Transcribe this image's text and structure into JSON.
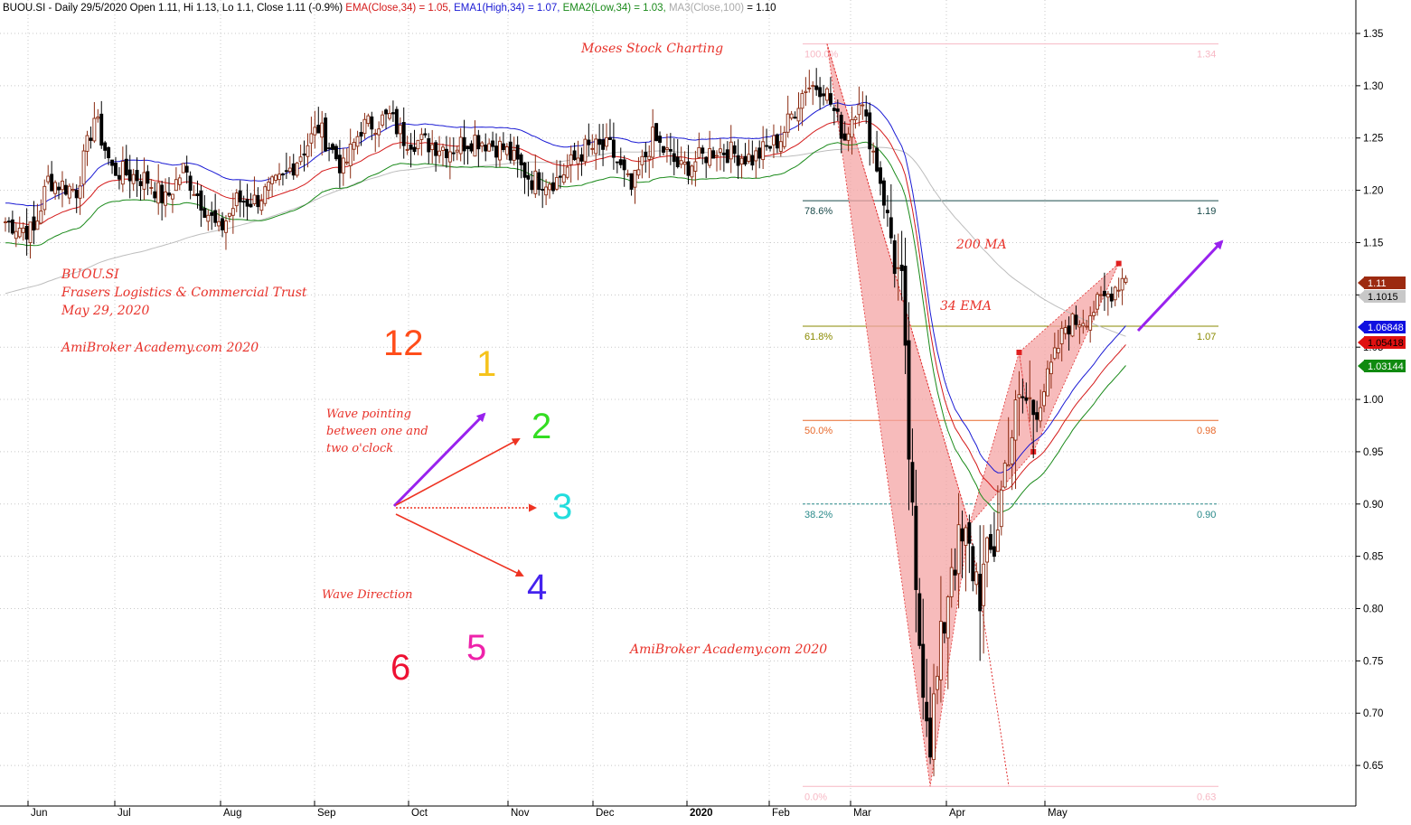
{
  "header": {
    "symbol": "BUOU.SI",
    "info": " - Daily 29/5/2020 Open 1.11, Hi 1.13, Lo 1.1, Close 1.11 (-0.9%) ",
    "ema": "EMA(Close,34) = 1.05,",
    "ema1": "EMA1(High,34) = 1.07,",
    "ema2": "EMA2(Low,34) = 1.03,",
    "ma3": "MA3(Close,100)",
    "ma3_value": " = 1.10"
  },
  "annotations": {
    "watermark_top": "Moses Stock Charting",
    "symbol_note": "BUOU.SI",
    "company": "Frasers Logistics & Commercial Trust",
    "date": "May 29, 2020",
    "credit_left": "AmiBroker Academy.com  2020",
    "credit_bottom": "AmiBroker Academy.com  2020",
    "ma200": "200 MA",
    "ema34": "34 EMA",
    "wave_pointing_1": "Wave pointing",
    "wave_pointing_2": "between one and",
    "wave_pointing_3": "two o'clock",
    "wave_direction": "Wave Direction"
  },
  "clock": {
    "n12": "12",
    "n1": "1",
    "n2": "2",
    "n3": "3",
    "n4": "4",
    "n5": "5",
    "n6": "6",
    "colors": {
      "n12": "#ff4d1a",
      "n1": "#f5c31c",
      "n2": "#33dd22",
      "n3": "#22dddd",
      "n4": "#4422ee",
      "n5": "#ee22aa",
      "n6": "#ee1133"
    }
  },
  "fib_levels": [
    {
      "pct": "100.0%",
      "value": "1.34",
      "color": "#f7b8c4"
    },
    {
      "pct": "78.6%",
      "value": "1.19",
      "color": "#1a4a4a"
    },
    {
      "pct": "61.8%",
      "value": "1.07",
      "color": "#8a8a00"
    },
    {
      "pct": "50.0%",
      "value": "0.98",
      "color": "#e8682a"
    },
    {
      "pct": "38.2%",
      "value": "0.90",
      "color": "#2a8a8a"
    },
    {
      "pct": "0.0%",
      "value": "0.63",
      "color": "#f7b8c4"
    }
  ],
  "price_badges": [
    {
      "label": "1.11",
      "bg": "#9c2a10",
      "fg": "#ffffff"
    },
    {
      "label": "1.1015",
      "bg": "#c8c8c8",
      "fg": "#000000"
    },
    {
      "label": "1.06848",
      "bg": "#1010e0",
      "fg": "#ffffff"
    },
    {
      "label": "1.05418",
      "bg": "#e01010",
      "fg": "#000000"
    },
    {
      "label": "1.03144",
      "bg": "#108a10",
      "fg": "#ffffff"
    }
  ],
  "colors": {
    "ema_close": "#d41a1a",
    "ema_high": "#1a1ad4",
    "ema_low": "#1a8a1a",
    "ma100": "#bdbdbd",
    "pattern_fill": "#f4a4a4",
    "annotation": "#e8322a",
    "arrow_purple": "#9922ee",
    "arrow_red": "#ee3322",
    "up_candle": "#8a2a10",
    "down_candle": "#000000"
  },
  "chart_data": {
    "type": "candlestick",
    "y_axis": {
      "min": 0.6,
      "max": 1.37,
      "ticks": [
        1.35,
        1.3,
        1.25,
        1.2,
        1.15,
        1.1,
        1.05,
        1.0,
        0.95,
        0.9,
        0.85,
        0.8,
        0.75,
        0.7,
        0.65
      ]
    },
    "x_labels": [
      "Jun",
      "Jul",
      "Aug",
      "Sep",
      "Oct",
      "Nov",
      "Dec",
      "2020",
      "Feb",
      "Mar",
      "Apr",
      "May"
    ],
    "grid": true,
    "anchors": [
      [
        0,
        1.17
      ],
      [
        8,
        1.16
      ],
      [
        12,
        1.21
      ],
      [
        20,
        1.2
      ],
      [
        25,
        1.27
      ],
      [
        30,
        1.22
      ],
      [
        40,
        1.21
      ],
      [
        45,
        1.19
      ],
      [
        50,
        1.22
      ],
      [
        60,
        1.16
      ],
      [
        65,
        1.19
      ],
      [
        70,
        1.19
      ],
      [
        78,
        1.21
      ],
      [
        88,
        1.26
      ],
      [
        95,
        1.22
      ],
      [
        100,
        1.26
      ],
      [
        108,
        1.27
      ],
      [
        112,
        1.25
      ],
      [
        125,
        1.24
      ],
      [
        132,
        1.25
      ],
      [
        140,
        1.24
      ],
      [
        148,
        1.21
      ],
      [
        155,
        1.21
      ],
      [
        163,
        1.24
      ],
      [
        170,
        1.24
      ],
      [
        176,
        1.2
      ],
      [
        182,
        1.25
      ],
      [
        190,
        1.22
      ],
      [
        200,
        1.24
      ],
      [
        210,
        1.23
      ],
      [
        218,
        1.25
      ],
      [
        225,
        1.3
      ],
      [
        230,
        1.3
      ],
      [
        236,
        1.25
      ],
      [
        240,
        1.29
      ],
      [
        246,
        1.21
      ],
      [
        252,
        1.1
      ],
      [
        256,
        0.8
      ],
      [
        260,
        0.68
      ],
      [
        262,
        0.73
      ],
      [
        266,
        0.85
      ],
      [
        270,
        0.86
      ],
      [
        274,
        0.82
      ],
      [
        278,
        0.86
      ],
      [
        282,
        0.96
      ],
      [
        286,
        1.0
      ],
      [
        290,
        0.99
      ],
      [
        294,
        1.03
      ],
      [
        298,
        1.07
      ],
      [
        304,
        1.08
      ],
      [
        310,
        1.1
      ],
      [
        315,
        1.12
      ]
    ],
    "pattern_points": [
      [
        231,
        1.34
      ],
      [
        260,
        0.63
      ],
      [
        271,
        0.88
      ],
      [
        285,
        1.045
      ],
      [
        289,
        0.95
      ],
      [
        313,
        1.13
      ]
    ],
    "series": [
      {
        "name": "EMA(Close,34)",
        "last": 1.05
      },
      {
        "name": "EMA1(High,34)",
        "last": 1.07
      },
      {
        "name": "EMA2(Low,34)",
        "last": 1.03
      },
      {
        "name": "MA3(Close,100)",
        "last": 1.1
      }
    ]
  }
}
